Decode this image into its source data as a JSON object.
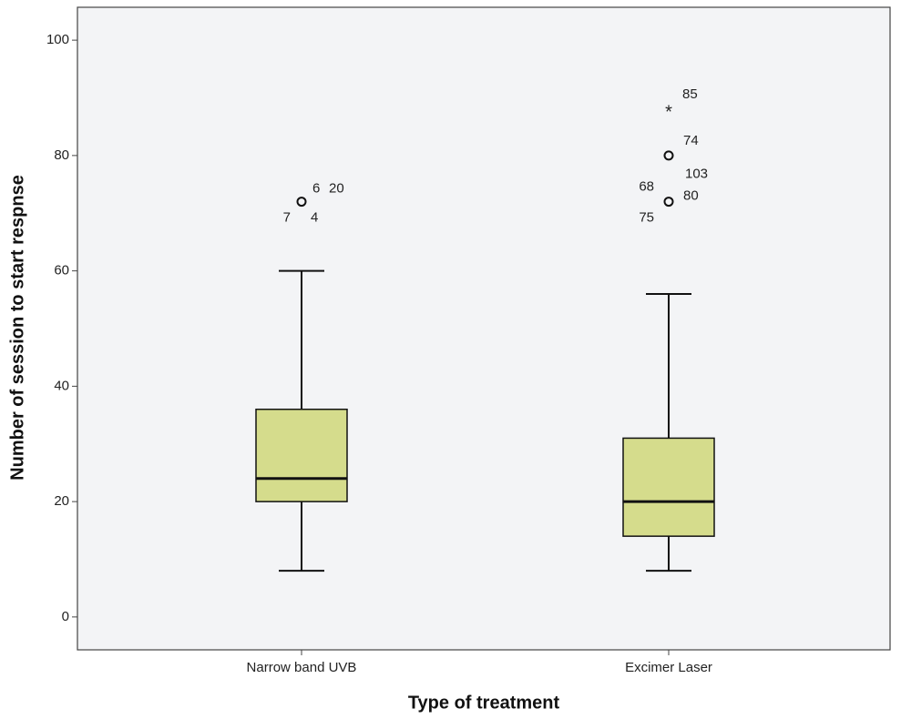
{
  "chart_data": {
    "type": "box",
    "xlabel": "Type of treatment",
    "ylabel": "Number of session to start respnse",
    "categories": [
      "Narrow band UVB",
      "Excimer Laser"
    ],
    "boxes": [
      {
        "min": 8,
        "q1": 20,
        "median": 24,
        "q3": 36,
        "max": 60,
        "outliers": [
          {
            "value": 72,
            "marker": "circle",
            "labels": [
              "6",
              "20",
              "7",
              "4"
            ]
          }
        ]
      },
      {
        "min": 8,
        "q1": 14,
        "median": 20,
        "q3": 31,
        "max": 56,
        "outliers": [
          {
            "value": 88,
            "marker": "star",
            "labels": [
              "85"
            ]
          },
          {
            "value": 80,
            "marker": "circle",
            "labels": [
              "74"
            ]
          },
          {
            "value": 72,
            "marker": "circle",
            "labels": [
              "103",
              "68",
              "80",
              "75"
            ]
          }
        ]
      }
    ],
    "color": "#d5dc8c",
    "background": "#f3f4f6",
    "ylim": [
      -5.7,
      105.7
    ],
    "yticks": [
      0,
      20,
      40,
      60,
      80,
      100
    ]
  }
}
